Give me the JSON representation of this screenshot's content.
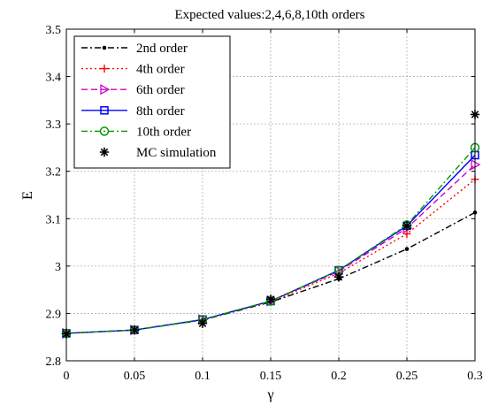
{
  "chart_data": {
    "type": "line",
    "title": "Expected values:2,4,6,8,10th orders",
    "xlabel": "γ",
    "ylabel": "E",
    "xlim": [
      0,
      0.3
    ],
    "ylim": [
      2.8,
      3.5
    ],
    "x_ticks": [
      "0",
      "0.05",
      "0.1",
      "0.15",
      "0.2",
      "0.25",
      "0.3"
    ],
    "y_ticks": [
      "2.8",
      "2.9",
      "3",
      "3.1",
      "3.2",
      "3.3",
      "3.4",
      "3.5"
    ],
    "grid": true,
    "legend_position": "top-left",
    "x": [
      0,
      0.05,
      0.1,
      0.15,
      0.2,
      0.25,
      0.3
    ],
    "series": [
      {
        "name": "2nd order",
        "values": [
          2.858,
          2.865,
          2.886,
          2.924,
          2.973,
          3.036,
          3.113
        ],
        "color": "#000000",
        "dash": "7 3 2 3",
        "marker": "dot"
      },
      {
        "name": "4th order",
        "values": [
          2.858,
          2.865,
          2.887,
          2.925,
          2.985,
          3.068,
          3.183
        ],
        "color": "#ff0000",
        "dash": "2 3",
        "marker": "plus"
      },
      {
        "name": "6th order",
        "values": [
          2.858,
          2.865,
          2.887,
          2.926,
          2.989,
          3.08,
          3.214
        ],
        "color": "#cc00cc",
        "dash": "7 4",
        "marker": "triangle-right"
      },
      {
        "name": "8th order",
        "values": [
          2.858,
          2.865,
          2.887,
          2.926,
          2.991,
          3.085,
          3.234
        ],
        "color": "#0000ff",
        "dash": "",
        "marker": "square"
      },
      {
        "name": "10th order",
        "values": [
          2.858,
          2.865,
          2.887,
          2.926,
          2.991,
          3.087,
          3.25
        ],
        "color": "#009900",
        "dash": "7 3 2 3",
        "marker": "circle"
      },
      {
        "name": "MC simulation",
        "values": [
          2.857,
          2.865,
          2.879,
          2.93,
          2.977,
          3.085,
          3.32
        ],
        "color": "#000000",
        "dash": "none",
        "marker": "asterisk"
      }
    ]
  }
}
